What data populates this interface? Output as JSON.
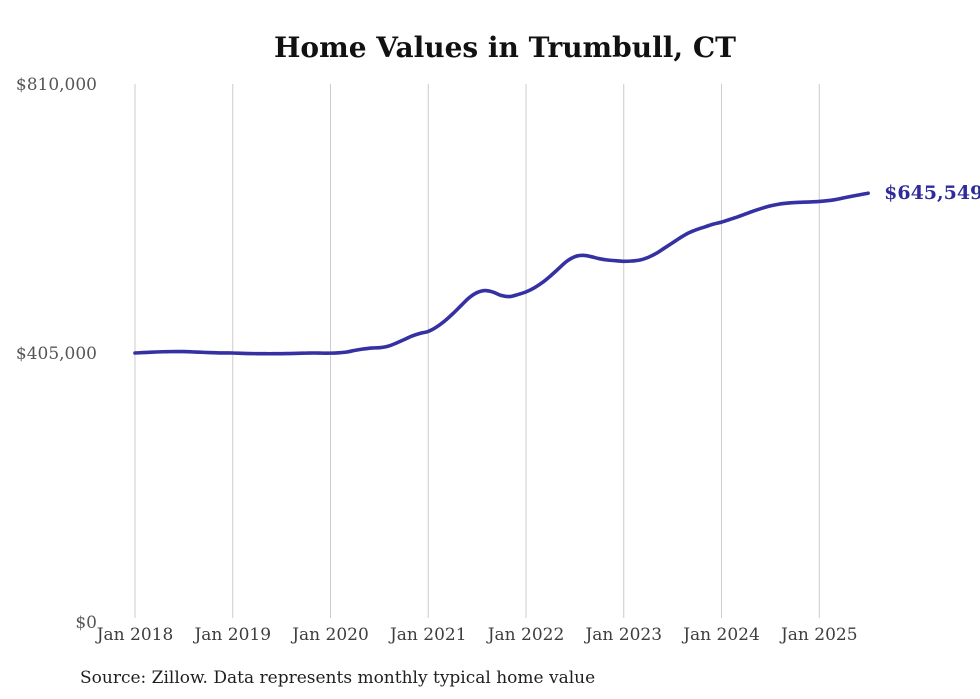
{
  "chart": {
    "title": "Home Values in Trumbull, CT",
    "source": "Source: Zillow. Data represents monthly typical home value",
    "end_label": "$645,549"
  },
  "chart_data": {
    "type": "line",
    "title": "Home Values in Trumbull, CT",
    "xlabel": "",
    "ylabel": "",
    "x_start": "2018-01",
    "x_end": "2025-07",
    "frequency": "monthly",
    "x_ticks": [
      "Jan 2018",
      "Jan 2019",
      "Jan 2020",
      "Jan 2021",
      "Jan 2022",
      "Jan 2023",
      "Jan 2024",
      "Jan 2025"
    ],
    "y_ticks": [
      {
        "label": "$0",
        "value": 0
      },
      {
        "label": "$405,000",
        "value": 405000
      },
      {
        "label": "$810,000",
        "value": 810000
      }
    ],
    "ylim": [
      0,
      810000
    ],
    "grid": "vertical-only",
    "legend": "none",
    "line_color": "#3531a2",
    "end_label_color": "#2f2b99",
    "gridline_color": "#cccccc",
    "series_name": "Typical home value ($)",
    "values": [
      405000,
      405600,
      406200,
      406700,
      407000,
      407200,
      407100,
      406700,
      406200,
      405700,
      405300,
      405100,
      405000,
      404600,
      404200,
      404000,
      403900,
      403900,
      404000,
      404200,
      404500,
      404800,
      405000,
      404800,
      404800,
      405300,
      406500,
      409000,
      411000,
      412500,
      413000,
      415000,
      419500,
      425000,
      430500,
      434500,
      437500,
      444000,
      453000,
      464000,
      476000,
      488000,
      496000,
      499000,
      496500,
      491500,
      490000,
      493000,
      497000,
      503000,
      511000,
      521000,
      532000,
      543000,
      550000,
      552000,
      550000,
      547000,
      545000,
      544000,
      543000,
      543500,
      545000,
      549000,
      555000,
      563000,
      571000,
      579000,
      586000,
      591000,
      595000,
      599000,
      602000,
      606000,
      610000,
      614500,
      619000,
      623000,
      626500,
      629000,
      630500,
      631500,
      632000,
      632500,
      633200,
      634300,
      636000,
      638500,
      641000,
      643300,
      645549
    ],
    "last_value": 645549,
    "last_value_label": "$645,549"
  }
}
